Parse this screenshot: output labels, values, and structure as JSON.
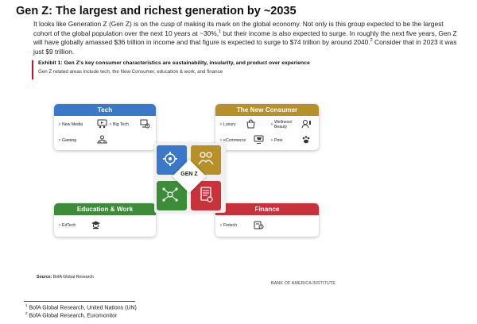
{
  "page": {
    "title": "Gen Z: The largest and richest generation by ~2035",
    "intro": {
      "part1": "It looks like Generation Z (Gen Z) is on the cusp of making its mark on the global economy. Not only is this group expected to be the largest cohort of the global population over the next 10 years at ~30%,",
      "sup1": "1",
      "part2": " but their income is also expected to surge. In roughly the next five years, Gen Z will have globally amassed $36 trillion in income and that figure is expected to surge to $74 trillion by around 2040.",
      "sup2": "2",
      "part3": " Consider that in 2023 it was just $9 trillion."
    }
  },
  "exhibit": {
    "title": "Exhibit 1: Gen Z’s key consumer characteristics are sustainability, insularity, and product over experience",
    "subtitle": "Gen Z related areas include tech, the New Consumer, education & work, and finance"
  },
  "center": {
    "label": "GEN Z"
  },
  "cards": {
    "tech": {
      "title": "Tech",
      "color": "#3a78c9",
      "items": [
        {
          "label": "New Media",
          "icon": "media-icon"
        },
        {
          "label": "Big Tech",
          "icon": "big-tech-icon"
        },
        {
          "label": "Gaming",
          "icon": "gaming-icon"
        }
      ]
    },
    "new_consumer": {
      "title": "The New Consumer",
      "color": "#b8902a",
      "items": [
        {
          "label": "Luxury",
          "icon": "luxury-icon"
        },
        {
          "label": "Wellness/\nBeauty",
          "icon": "wellness-icon"
        },
        {
          "label": "eCommerce",
          "icon": "ecommerce-icon"
        },
        {
          "label": "Pets",
          "icon": "pets-icon"
        }
      ]
    },
    "education": {
      "title": "Education & Work",
      "color": "#3d8c3a",
      "items": [
        {
          "label": "EdTech",
          "icon": "edtech-icon"
        }
      ]
    },
    "finance": {
      "title": "Finance",
      "color": "#c8323a",
      "items": [
        {
          "label": "Fintech",
          "icon": "fintech-icon"
        }
      ]
    }
  },
  "source": {
    "label": "Source:",
    "text": "BofA Global Research"
  },
  "brand": "BANK OF AMERICA INSTITUTE",
  "footnotes": [
    {
      "num": "1",
      "text": "BofA Global Research, United Nations (UN)"
    },
    {
      "num": "2",
      "text": "BofA Global Research, Euromonitor"
    }
  ]
}
